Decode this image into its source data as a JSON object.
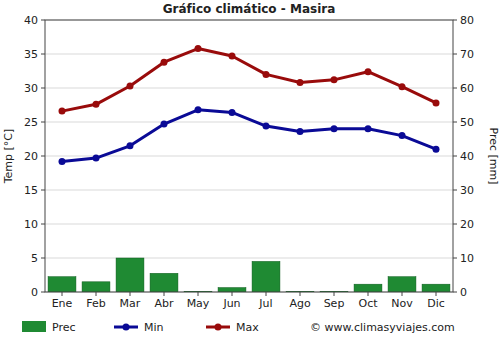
{
  "chart_data": {
    "type": "bar",
    "title": "Gráfico climático - Masira",
    "y_label": "Temp [°C]",
    "y2_label": "Prec [mm]",
    "categories": [
      "Ene",
      "Feb",
      "Mar",
      "Abr",
      "May",
      "Jun",
      "Jul",
      "Ago",
      "Sep",
      "Oct",
      "Nov",
      "Dic"
    ],
    "series": [
      {
        "name": "Prec",
        "type": "bar",
        "axis": "y2",
        "color": "#1f8a33",
        "values": [
          4.5,
          3,
          10,
          5.5,
          0.2,
          1.3,
          9,
          0.2,
          0.2,
          2.3,
          4.5,
          2.3
        ]
      },
      {
        "name": "Min",
        "type": "line",
        "marker": "circle",
        "color": "#0a0a96",
        "values": [
          19.2,
          19.7,
          21.5,
          24.7,
          26.8,
          26.4,
          24.4,
          23.6,
          24.0,
          24.0,
          23.0,
          21.0
        ]
      },
      {
        "name": "Max",
        "type": "line",
        "marker": "circle",
        "color": "#990b0b",
        "values": [
          26.6,
          27.6,
          30.3,
          33.8,
          35.8,
          34.7,
          32.0,
          30.8,
          31.2,
          32.4,
          30.2,
          27.8
        ]
      }
    ],
    "ylim": [
      0,
      40
    ],
    "yticks": [
      0,
      5,
      10,
      15,
      20,
      25,
      30,
      35,
      40
    ],
    "y2lim": [
      0,
      80
    ],
    "y2ticks": [
      0,
      10,
      20,
      30,
      40,
      50,
      60,
      70,
      80
    ],
    "grid": true,
    "legend": "bottom",
    "watermark": "© www.climasyviajes.com"
  }
}
